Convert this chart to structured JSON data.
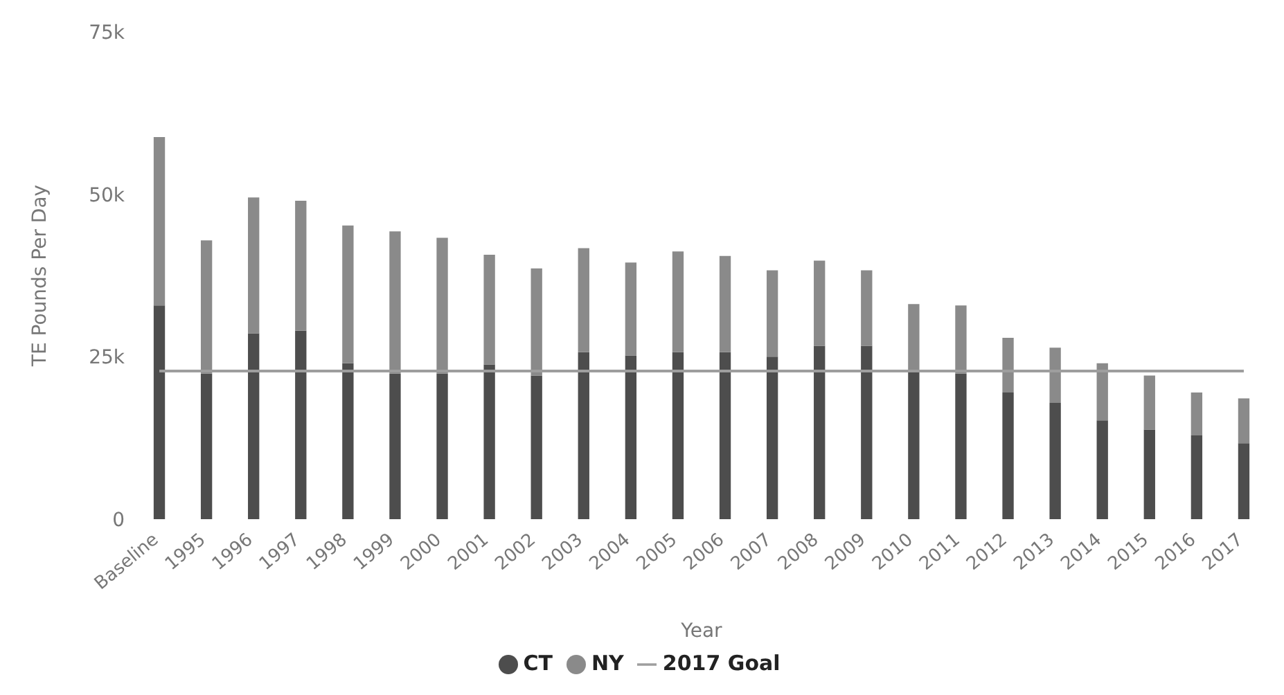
{
  "chart_data": {
    "type": "bar",
    "stacked": true,
    "xlabel": "Year",
    "ylabel": "TE Pounds Per Day",
    "categories": [
      "Baseline",
      "1995",
      "1996",
      "1997",
      "1998",
      "1999",
      "2000",
      "2001",
      "2002",
      "2003",
      "2004",
      "2005",
      "2006",
      "2007",
      "2008",
      "2009",
      "2010",
      "2011",
      "2012",
      "2013",
      "2014",
      "2015",
      "2016",
      "2017"
    ],
    "series": [
      {
        "name": "CT",
        "color": "#4d4d4d",
        "values": [
          32900,
          22400,
          28600,
          29000,
          24000,
          22400,
          22400,
          23800,
          22100,
          25700,
          25200,
          25700,
          25700,
          25000,
          26700,
          26700,
          22900,
          22400,
          19500,
          17900,
          15200,
          13800,
          12900,
          11700
        ]
      },
      {
        "name": "NY",
        "color": "#8a8a8a",
        "values": [
          25900,
          20500,
          20900,
          20000,
          21200,
          21900,
          20900,
          16900,
          16500,
          16000,
          14300,
          15500,
          14800,
          13300,
          13100,
          11600,
          10200,
          10500,
          8400,
          8500,
          8800,
          8300,
          6600,
          6900
        ]
      },
      {
        "name": "2017 Goal",
        "type": "line",
        "color": "#9e9e9e",
        "marker": "none",
        "values": [
          22800,
          22800,
          22800,
          22800,
          22800,
          22800,
          22800,
          22800,
          22800,
          22800,
          22800,
          22800,
          22800,
          22800,
          22800,
          22800,
          22800,
          22800,
          22800,
          22800,
          22800,
          22800,
          22800,
          22800
        ]
      }
    ],
    "ylim": [
      0,
      75000
    ],
    "yticks": [
      {
        "value": 0,
        "label": "0"
      },
      {
        "value": 25000,
        "label": "25k"
      },
      {
        "value": 50000,
        "label": "50k"
      },
      {
        "value": 75000,
        "label": "75k"
      }
    ],
    "legend": "bottom"
  }
}
